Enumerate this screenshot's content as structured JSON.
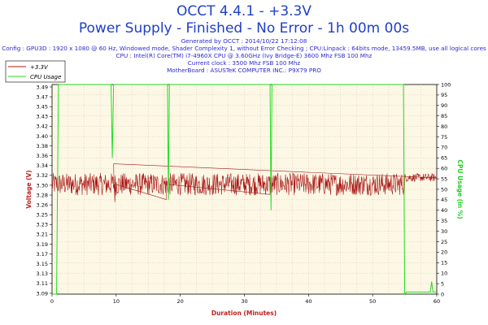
{
  "header": {
    "title": "OCCT 4.4.1 - +3.3V",
    "subtitle": "Power Supply - Finished - No Error - 1h 00m 00s",
    "info_lines": [
      "Generated by OCCT : 2014/10/22 17:12:08",
      "Config : GPU3D : 1920 x 1080 @ 60 Hz, Windowed mode, Shader Complexity 1, without Error Checking ; CPU:Linpack : 64bits mode, 13459.5MB, use all logical cores",
      "CPU : Intel(R) Core(TM) i7-4960X CPU @ 3.60GHz (Ivy Bridge-E) 3600 Mhz FSB 100 Mhz",
      "Current clock : 3500 Mhz FSB 100 Mhz",
      "MotherBoard : ASUSTeK COMPUTER INC.: P9X79 PRO"
    ]
  },
  "colors": {
    "voltage": "#a81818",
    "cpu": "#22dd22",
    "plot_bg": "#fdf8e6",
    "grid": "#c8b89a",
    "title": "#1f3fc9"
  },
  "chart_data": {
    "type": "line",
    "xlabel": "Duration (Minutes)",
    "ylabel": "Voltage (V)",
    "y2label": "CPU Usage (in %)",
    "xlim": [
      0,
      60
    ],
    "ylim": [
      3.09,
      3.5
    ],
    "y2lim": [
      0,
      100
    ],
    "grid": true,
    "legend_position": "top-left",
    "x_ticks": [
      0,
      10,
      20,
      30,
      40,
      50,
      60
    ],
    "y_ticks": [
      "3.09",
      "3.11",
      "3.13",
      "3.15",
      "3.17",
      "3.19",
      "3.21",
      "3.23",
      "3.25",
      "3.26",
      "3.28",
      "3.30",
      "3.32",
      "3.34",
      "3.36",
      "3.38",
      "3.40",
      "3.42",
      "3.43",
      "3.45",
      "3.47",
      "3.49"
    ],
    "y2_ticks": [
      0,
      5,
      10,
      15,
      20,
      25,
      30,
      35,
      40,
      45,
      50,
      55,
      60,
      65,
      70,
      75,
      80,
      85,
      90,
      95,
      100
    ],
    "series": [
      {
        "name": "+3.3V",
        "axis": "left",
        "segments": [
          {
            "x_start": 0,
            "x_end": 55,
            "center": 3.305,
            "spread": 0.022
          },
          {
            "x_start": 55,
            "x_end": 60,
            "center": 3.318,
            "spread": 0.008
          }
        ],
        "spikes": [
          [
            9.6,
            3.345
          ],
          [
            9.8,
            3.27
          ],
          [
            17.8,
            3.275
          ],
          [
            34,
            3.285
          ]
        ]
      },
      {
        "name": "CPU Usage",
        "axis": "right",
        "x": [
          0,
          0.7,
          1.0,
          1.3,
          9.2,
          9.4,
          9.6,
          18.0,
          18.15,
          18.3,
          34.0,
          34.15,
          34.3,
          54.8,
          55.0,
          55.3,
          59.0,
          59.2,
          59.4,
          60
        ],
        "values": [
          0,
          0,
          100,
          100,
          100,
          65,
          100,
          100,
          45,
          100,
          100,
          40,
          100,
          100,
          0,
          1,
          1,
          6,
          1,
          1
        ]
      }
    ]
  }
}
